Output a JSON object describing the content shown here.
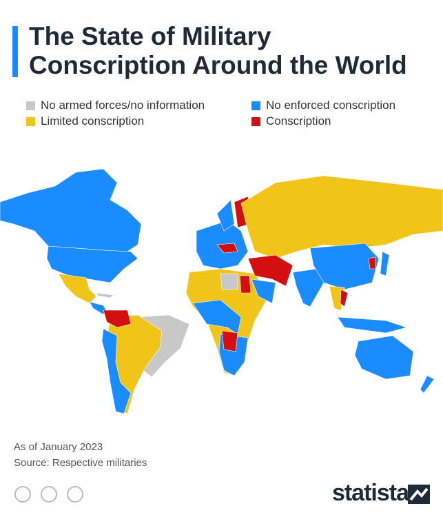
{
  "header": {
    "title_lines": [
      "The State of Military",
      "Conscription Around the World"
    ]
  },
  "legend": [
    {
      "name": "No armed forces/no information",
      "color": "#c8c8c8"
    },
    {
      "name": "No enforced conscription",
      "color": "#1a8cff"
    },
    {
      "name": "Limited conscription",
      "color": "#f0c419"
    },
    {
      "name": "Conscription",
      "color": "#d40f0f"
    }
  ],
  "footer": {
    "note": "As of January 2023",
    "source": "Source: Respective militaries",
    "brand": "statista"
  }
}
